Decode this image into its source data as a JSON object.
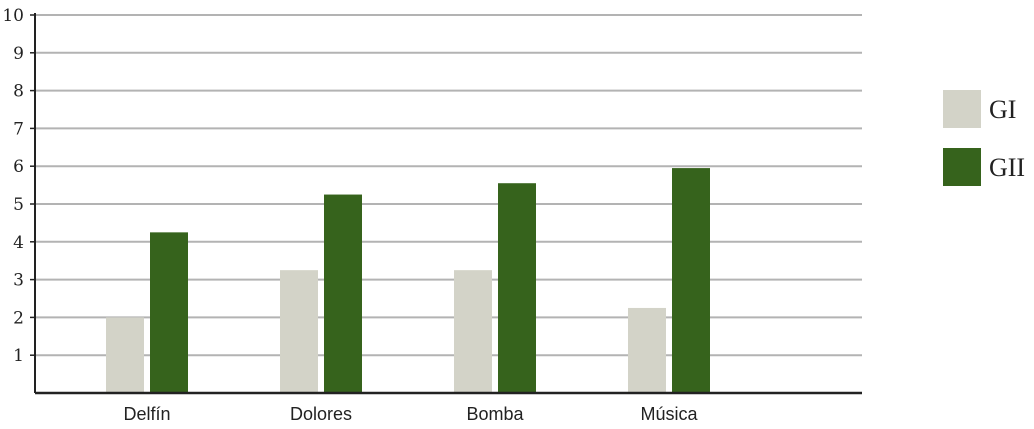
{
  "chart_data": {
    "type": "bar",
    "categories": [
      "Delfín",
      "Dolores",
      "Bomba",
      "Música"
    ],
    "series": [
      {
        "name": "GI",
        "values": [
          2.0,
          3.25,
          3.25,
          2.25
        ],
        "color": "#d3d3c8"
      },
      {
        "name": "GII",
        "values": [
          4.25,
          5.25,
          5.55,
          5.95
        ],
        "color": "#36631c"
      }
    ],
    "yticks": [
      "1",
      "2",
      "3",
      "4",
      "5",
      "6",
      "7",
      "8",
      "9",
      "10"
    ],
    "ylim": [
      0,
      10
    ],
    "grid": true,
    "legend_position": "right"
  }
}
